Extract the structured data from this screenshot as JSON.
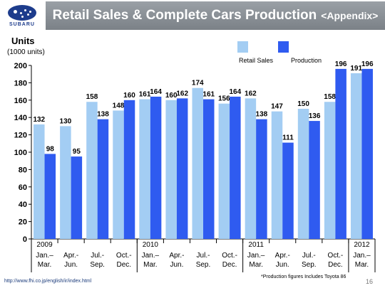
{
  "header": {
    "logo_text": "SUBARU",
    "title": "Retail Sales & Complete Cars Production",
    "appendix": "<Appendix>"
  },
  "units": {
    "label": "Units",
    "sub": "(1000 units)"
  },
  "footer": {
    "url": "http://www.fhi.co.jp/english/ir/index.html",
    "note": "*Production figures Includes Toyota 86",
    "page": "16"
  },
  "colors": {
    "retail": "#a3cdf3",
    "production": "#2f5bf0",
    "title_bar": "#8a9096",
    "brand": "#1d3c8c"
  },
  "chart_data": {
    "type": "bar",
    "title": "",
    "xlabel": "",
    "ylabel": "Units",
    "ylim": [
      0,
      200
    ],
    "yticks": [
      0,
      20,
      40,
      60,
      80,
      100,
      120,
      140,
      160,
      180,
      200
    ],
    "grid": false,
    "legend": "top-center",
    "categories": [
      "Jan.– Mar.",
      "Apr.- Jun.",
      "Jul.- Sep.",
      "Oct.- Dec.",
      "Jan.– Mar.",
      "Apr.- Jun.",
      "Jul.- Sep.",
      "Oct.- Dec.",
      "Jan.– Mar.",
      "Apr.- Jun.",
      "Jul.- Sep.",
      "Oct.- Dec.",
      "Jan.– Mar."
    ],
    "category_lines": [
      [
        "Jan.–",
        "Mar."
      ],
      [
        "Apr.-",
        "Jun."
      ],
      [
        "Jul.-",
        "Sep."
      ],
      [
        "Oct.-",
        "Dec."
      ],
      [
        "Jan.–",
        "Mar."
      ],
      [
        "Apr.-",
        "Jun."
      ],
      [
        "Jul.-",
        "Sep."
      ],
      [
        "Oct.-",
        "Dec."
      ],
      [
        "Jan.–",
        "Mar."
      ],
      [
        "Apr.-",
        "Jun."
      ],
      [
        "Jul.-",
        "Sep."
      ],
      [
        "Oct.-",
        "Dec."
      ],
      [
        "Jan.–",
        "Mar."
      ]
    ],
    "years": [
      {
        "label": "2009",
        "index": 0
      },
      {
        "label": "2010",
        "index": 4
      },
      {
        "label": "2011",
        "index": 8
      },
      {
        "label": "2012",
        "index": 12
      }
    ],
    "series": [
      {
        "name": "Retail Sales",
        "values": [
          132,
          130,
          158,
          148,
          161,
          160,
          174,
          156,
          162,
          147,
          150,
          158,
          191
        ]
      },
      {
        "name": "Production",
        "values": [
          98,
          95,
          138,
          160,
          164,
          162,
          161,
          164,
          138,
          111,
          136,
          196,
          196
        ]
      }
    ]
  }
}
